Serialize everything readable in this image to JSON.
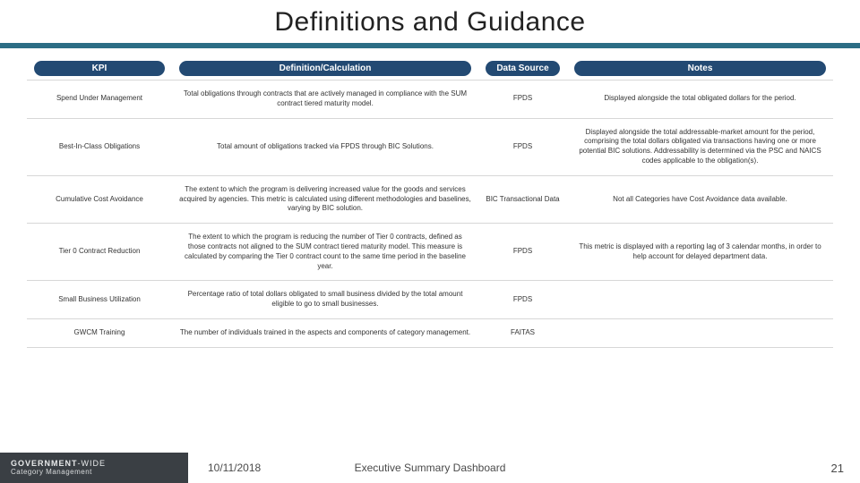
{
  "title": "Definitions and Guidance",
  "colors": {
    "rule": "#2c6d85",
    "header_pill": "#234a73",
    "header_text": "#ffffff",
    "body_text": "#333333",
    "row_border": "#d7d7d7",
    "brand_bg": "#3a3f44",
    "background": "#ffffff"
  },
  "typography": {
    "title_size_pt": 22,
    "header_size_pt": 8,
    "body_size_pt": 6,
    "footer_size_pt": 9
  },
  "table": {
    "column_widths_pct": [
      18,
      38,
      11,
      33
    ],
    "columns": [
      "KPI",
      "Definition/Calculation",
      "Data Source",
      "Notes"
    ],
    "rows": [
      {
        "kpi": "Spend Under Management",
        "definition": "Total obligations through contracts that are actively managed in compliance with the SUM contract tiered maturity model.",
        "source": "FPDS",
        "notes": "Displayed alongside the total obligated dollars for the period."
      },
      {
        "kpi": "Best-In-Class Obligations",
        "definition": "Total amount of obligations tracked via FPDS through BIC Solutions.",
        "source": "FPDS",
        "notes": "Displayed alongside the total addressable-market amount for the period, comprising the total dollars obligated via transactions having one or more potential BIC solutions. Addressability is determined via the PSC and NAICS codes applicable to the obligation(s)."
      },
      {
        "kpi": "Cumulative Cost Avoidance",
        "definition": "The extent to which the program is delivering increased value for the goods and services acquired by agencies. This metric is calculated using different methodologies and baselines, varying by BIC solution.",
        "source": "BIC Transactional Data",
        "notes": "Not all Categories have Cost Avoidance data available."
      },
      {
        "kpi": "Tier 0 Contract Reduction",
        "definition": "The extent to which the program is reducing the number of Tier 0 contracts, defined as those contracts not aligned to the SUM contract tiered maturity model. This measure is calculated by comparing the Tier 0 contract count to the same time period in the baseline year.",
        "source": "FPDS",
        "notes": "This metric is displayed with a reporting lag of 3 calendar months, in order to help account for delayed department data."
      },
      {
        "kpi": "Small Business Utilization",
        "definition": "Percentage ratio of total dollars obligated to small business divided by the total amount eligible to go to small businesses.",
        "source": "FPDS",
        "notes": ""
      },
      {
        "kpi": "GWCM Training",
        "definition": "The number of individuals trained in the aspects and components of category management.",
        "source": "FAITAS",
        "notes": ""
      }
    ]
  },
  "footer": {
    "brand_bold": "GOVERNMENT",
    "brand_rest": "-WIDE",
    "brand_line2": "Category Management",
    "date": "10/11/2018",
    "center": "Executive Summary Dashboard",
    "page": "21"
  }
}
